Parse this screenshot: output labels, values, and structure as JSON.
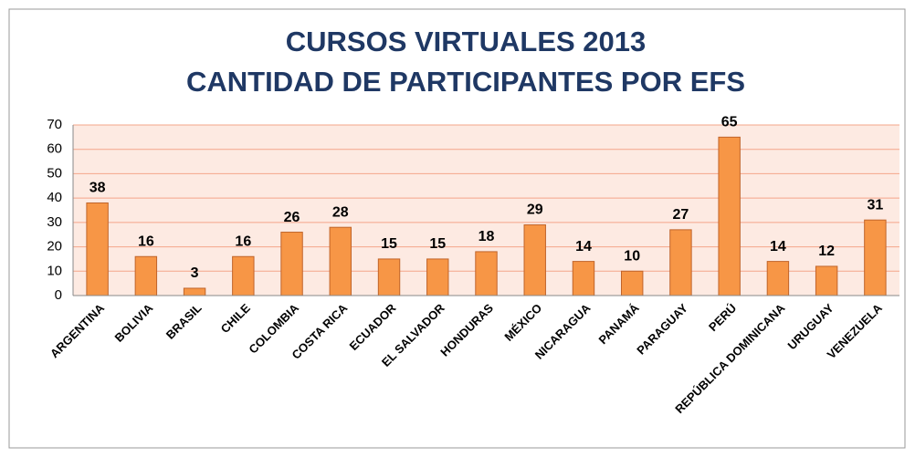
{
  "chart_data": {
    "type": "bar",
    "title": "CURSOS VIRTUALES 2013",
    "subtitle": "CANTIDAD DE PARTICIPANTES POR EFS",
    "categories": [
      "ARGENTINA",
      "BOLIVIA",
      "BRASIL",
      "CHILE",
      "COLOMBIA",
      "COSTA RICA",
      "ECUADOR",
      "EL SALVADOR",
      "HONDURAS",
      "MÉXICO",
      "NICARAGUA",
      "PANAMÁ",
      "PARAGUAY",
      "PERÚ",
      "REPÚBLICA DOMINICANA",
      "URUGUAY",
      "VENEZUELA"
    ],
    "values": [
      38,
      16,
      3,
      16,
      26,
      28,
      15,
      15,
      18,
      29,
      14,
      10,
      27,
      65,
      14,
      12,
      31
    ],
    "color": "#f79646",
    "ylim": [
      0,
      70
    ],
    "yticks": [
      0,
      10,
      20,
      30,
      40,
      50,
      60,
      70
    ],
    "grid": true
  }
}
